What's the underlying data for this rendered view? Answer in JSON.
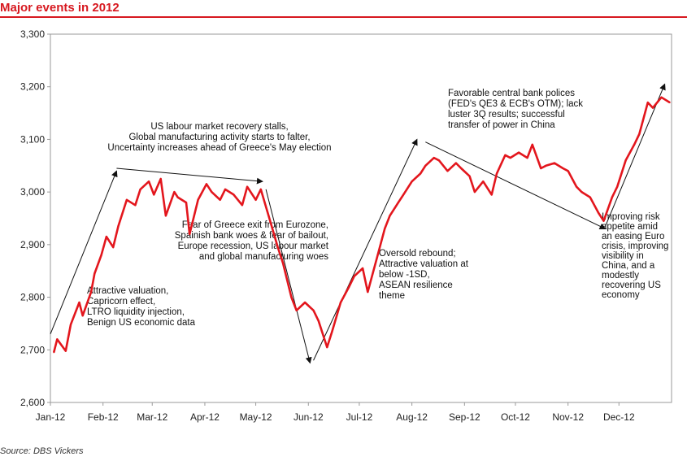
{
  "title": "Major events in 2012",
  "source": "Source: DBS Vickers",
  "chart_data": {
    "type": "line",
    "title": "Major events in 2012",
    "xlabel": "",
    "ylabel": "",
    "ylim": [
      2600,
      3300
    ],
    "yticks": [
      "2,600",
      "2,700",
      "2,800",
      "2,900",
      "3,000",
      "3,100",
      "3,200",
      "3,300"
    ],
    "xticks": [
      "Jan-12",
      "Feb-12",
      "Mar-12",
      "Apr-12",
      "May-12",
      "Jun-12",
      "Jul-12",
      "Aug-12",
      "Sep-12",
      "Oct-12",
      "Nov-12",
      "Dec-12"
    ],
    "grid": false,
    "line_color": "#e3161d",
    "series": [
      {
        "name": "",
        "x": [
          "2012-01-03",
          "2012-01-05",
          "2012-01-10",
          "2012-01-13",
          "2012-01-18",
          "2012-01-20",
          "2012-01-25",
          "2012-01-27",
          "2012-01-31",
          "2012-02-03",
          "2012-02-07",
          "2012-02-10",
          "2012-02-15",
          "2012-02-20",
          "2012-02-23",
          "2012-02-28",
          "2012-03-02",
          "2012-03-06",
          "2012-03-09",
          "2012-03-14",
          "2012-03-16",
          "2012-03-21",
          "2012-03-23",
          "2012-03-28",
          "2012-04-02",
          "2012-04-05",
          "2012-04-10",
          "2012-04-13",
          "2012-04-18",
          "2012-04-23",
          "2012-04-26",
          "2012-05-01",
          "2012-05-04",
          "2012-05-09",
          "2012-05-14",
          "2012-05-17",
          "2012-05-22",
          "2012-05-25",
          "2012-05-30",
          "2012-06-04",
          "2012-06-07",
          "2012-06-12",
          "2012-06-15",
          "2012-06-20",
          "2012-06-25",
          "2012-06-28",
          "2012-07-03",
          "2012-07-06",
          "2012-07-11",
          "2012-07-16",
          "2012-07-19",
          "2012-07-24",
          "2012-07-27",
          "2012-08-01",
          "2012-08-06",
          "2012-08-09",
          "2012-08-14",
          "2012-08-17",
          "2012-08-22",
          "2012-08-27",
          "2012-08-30",
          "2012-09-04",
          "2012-09-07",
          "2012-09-12",
          "2012-09-17",
          "2012-09-20",
          "2012-09-25",
          "2012-09-28",
          "2012-10-03",
          "2012-10-08",
          "2012-10-11",
          "2012-10-16",
          "2012-10-19",
          "2012-10-24",
          "2012-10-29",
          "2012-11-01",
          "2012-11-06",
          "2012-11-09",
          "2012-11-14",
          "2012-11-19",
          "2012-11-22",
          "2012-11-27",
          "2012-11-30",
          "2012-12-05",
          "2012-12-10",
          "2012-12-13",
          "2012-12-18",
          "2012-12-21",
          "2012-12-26",
          "2012-12-31"
        ],
        "values": [
          2695,
          2720,
          2698,
          2748,
          2790,
          2765,
          2810,
          2845,
          2880,
          2915,
          2895,
          2935,
          2985,
          2975,
          3005,
          3020,
          2995,
          3025,
          2955,
          3000,
          2990,
          2980,
          2920,
          2985,
          3015,
          3000,
          2985,
          3005,
          2995,
          2975,
          3010,
          2985,
          3005,
          2950,
          2895,
          2865,
          2800,
          2775,
          2790,
          2775,
          2755,
          2705,
          2735,
          2790,
          2820,
          2840,
          2855,
          2810,
          2870,
          2930,
          2955,
          2980,
          2995,
          3020,
          3035,
          3050,
          3065,
          3060,
          3040,
          3055,
          3045,
          3030,
          3000,
          3020,
          2995,
          3035,
          3070,
          3065,
          3075,
          3065,
          3090,
          3045,
          3050,
          3055,
          3045,
          3040,
          3010,
          3000,
          2990,
          2960,
          2945,
          2990,
          3010,
          3060,
          3090,
          3110,
          3170,
          3160,
          3180,
          3170
        ]
      }
    ],
    "trend_arrows": [
      {
        "from": [
          "2012-01-01",
          2730
        ],
        "to": [
          "2012-02-09",
          3040
        ]
      },
      {
        "from": [
          "2012-02-09",
          3045
        ],
        "to": [
          "2012-05-05",
          3020
        ]
      },
      {
        "from": [
          "2012-05-07",
          3005
        ],
        "to": [
          "2012-06-02",
          2675
        ]
      },
      {
        "from": [
          "2012-06-04",
          2680
        ],
        "to": [
          "2012-08-04",
          3100
        ]
      },
      {
        "from": [
          "2012-08-09",
          3095
        ],
        "to": [
          "2012-11-23",
          2930
        ]
      },
      {
        "from": [
          "2012-11-23",
          2935
        ],
        "to": [
          "2012-12-28",
          3205
        ]
      }
    ],
    "annotations": [
      {
        "id": "a1",
        "lines": [
          "Attractive valuation,",
          "Capricorn effect,",
          "LTRO liquidity injection,",
          "Benign US economic data"
        ]
      },
      {
        "id": "a2",
        "lines": [
          "US labour market recovery stalls,",
          "Global manufacturing activity starts to falter,",
          "Uncertainty increases ahead of Greece's May election"
        ]
      },
      {
        "id": "a3",
        "lines": [
          "Fear of Greece exit from Eurozone,",
          "Spainish bank woes & fear of bailout,",
          "Europe recession, US labour market",
          "and global manufacturing woes"
        ]
      },
      {
        "id": "a4",
        "lines": [
          "Oversold rebound;",
          "Attractive valuation at",
          "below -1SD,",
          "ASEAN resilience",
          "theme"
        ]
      },
      {
        "id": "a5",
        "lines": [
          "Favorable central bank polices",
          "(FED's QE3 & ECB's OTM); lack",
          "luster 3Q results; successful",
          "transfer of power in China"
        ]
      },
      {
        "id": "a6",
        "lines": [
          "Improving risk",
          "appetite amid",
          "an easing Euro",
          "crisis, improving",
          "visibility in",
          "China, and a",
          "modestly",
          "recovering US",
          "economy"
        ]
      }
    ]
  }
}
